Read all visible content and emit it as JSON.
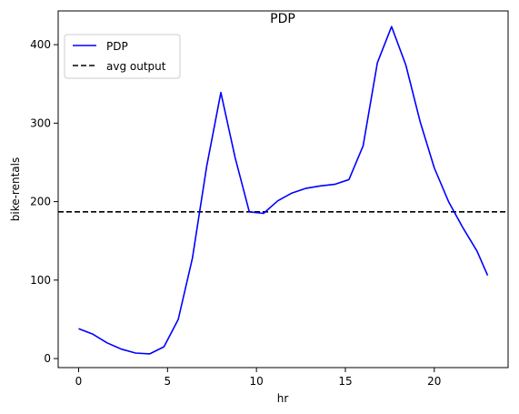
{
  "chart_data": {
    "type": "line",
    "title": "PDP",
    "xlabel": "hr",
    "ylabel": "bike-rentals",
    "xlim": [
      -1.15,
      24.15
    ],
    "ylim": [
      -11.5,
      443
    ],
    "xticks": [
      0,
      5,
      10,
      15,
      20
    ],
    "yticks": [
      0,
      100,
      200,
      300,
      400
    ],
    "grid": false,
    "legend_position": "top-left",
    "series": [
      {
        "name": "PDP",
        "color": "#0000ff",
        "style": "solid",
        "x": [
          0,
          0.8,
          1.6,
          2.4,
          3.2,
          4.0,
          4.8,
          5.6,
          6.4,
          7.2,
          8.0,
          8.8,
          9.6,
          10.4,
          11.2,
          12.0,
          12.8,
          13.6,
          14.4,
          15.2,
          16.0,
          16.8,
          17.6,
          18.4,
          19.2,
          20.0,
          20.8,
          21.6,
          22.4,
          23.0
        ],
        "y": [
          38,
          31,
          20,
          12,
          7,
          6,
          15,
          50,
          128,
          245,
          339,
          256,
          187,
          185,
          201,
          211,
          217,
          220,
          222,
          228,
          271,
          377,
          423,
          374,
          302,
          243,
          200,
          167,
          137,
          106
        ]
      }
    ],
    "reference_lines": [
      {
        "name": "avg output",
        "orientation": "horizontal",
        "value": 187,
        "color": "#000000",
        "style": "dashed"
      }
    ]
  }
}
